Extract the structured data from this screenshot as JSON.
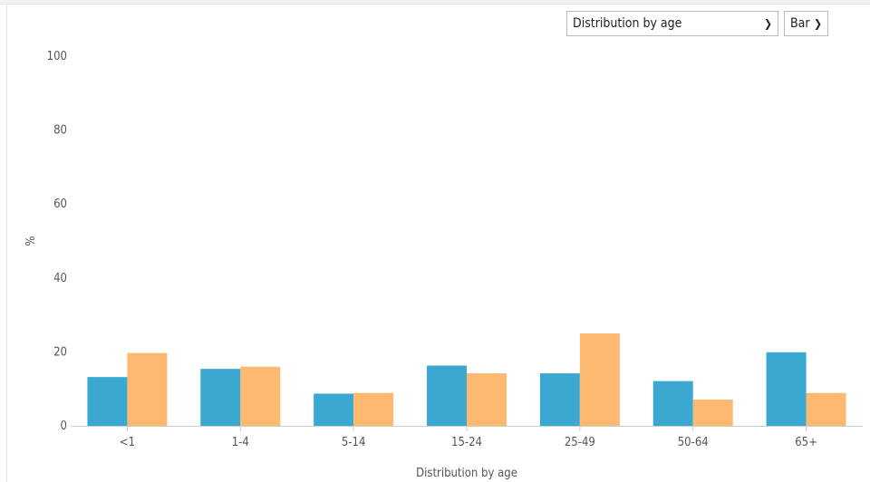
{
  "controls": {
    "metric_select": {
      "value": "Distribution by age"
    },
    "chart_type_select": {
      "value": "Bar"
    }
  },
  "chart_data": {
    "type": "bar",
    "categories": [
      "<1",
      "1-4",
      "5-14",
      "15-24",
      "25-49",
      "50-64",
      "65+"
    ],
    "series": [
      {
        "values": [
          13.2,
          15.4,
          8.7,
          16.3,
          14.2,
          12.1,
          19.9
        ]
      },
      {
        "values": [
          19.7,
          16.0,
          8.9,
          14.2,
          25.0,
          7.1,
          8.9
        ]
      }
    ],
    "title": "",
    "xlabel": "Distribution by age",
    "ylabel": "%",
    "ylim": [
      0,
      100
    ],
    "yticks": [
      0,
      20,
      40,
      60,
      80,
      100
    ],
    "grid": false,
    "colors": [
      "#3ba8d1",
      "#feb970"
    ]
  }
}
